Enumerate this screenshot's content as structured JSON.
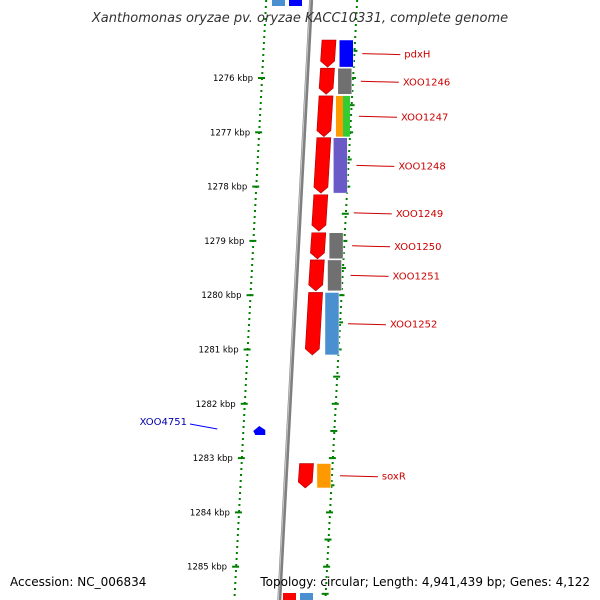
{
  "title": "Xanthomonas oryzae pv. oryzae KACC10331, complete genome",
  "footer": {
    "accession": "Accession: NC_006834",
    "summary": "Topology: circular; Length: 4,941,439 bp; Genes: 4,122"
  },
  "axis": {
    "unit": "kbp",
    "ticks": [
      "1276 kbp",
      "1277 kbp",
      "1278 kbp",
      "1279 kbp",
      "1280 kbp",
      "1281 kbp",
      "1282 kbp",
      "1283 kbp",
      "1284 kbp",
      "1285 kbp"
    ]
  },
  "genes": [
    {
      "label": "pdxH",
      "strand": "forward",
      "start_kbp": 1275.3,
      "end_kbp": 1275.8,
      "cog_color": "#0000ff"
    },
    {
      "label": "XOO1246",
      "strand": "forward",
      "start_kbp": 1275.82,
      "end_kbp": 1276.3,
      "cog_color": "#707070"
    },
    {
      "label": "XOO1247",
      "strand": "forward",
      "start_kbp": 1276.33,
      "end_kbp": 1277.08,
      "cog_color": [
        "#ff9900",
        "#33cc33"
      ]
    },
    {
      "label": "XOO1248",
      "strand": "forward",
      "start_kbp": 1277.1,
      "end_kbp": 1278.12,
      "cog_color": "#6a5ac8"
    },
    {
      "label": "XOO1249",
      "strand": "forward",
      "start_kbp": 1278.15,
      "end_kbp": 1278.82,
      "cog_color": null
    },
    {
      "label": "XOO1250",
      "strand": "forward",
      "start_kbp": 1278.85,
      "end_kbp": 1279.33,
      "cog_color": "#707070"
    },
    {
      "label": "XOO1251",
      "strand": "forward",
      "start_kbp": 1279.35,
      "end_kbp": 1279.92,
      "cog_color": "#707070"
    },
    {
      "label": "XOO1252",
      "strand": "forward",
      "start_kbp": 1279.95,
      "end_kbp": 1281.1,
      "cog_color": "#4a90d0"
    },
    {
      "label": "XOO4751",
      "strand": "reverse",
      "start_kbp": 1282.45,
      "end_kbp": 1282.55,
      "cog_color": null
    },
    {
      "label": "soxR",
      "strand": "forward",
      "start_kbp": 1283.1,
      "end_kbp": 1283.55,
      "cog_color": "#ff9900"
    }
  ],
  "edge_features": {
    "top": [
      "#4a90d0",
      "#0000ff"
    ],
    "bottom": [
      "#ff0000",
      "#4a90d0"
    ]
  },
  "colors": {
    "forward_gene": "#ff0000",
    "reverse_gene": "#0000ff",
    "forward_label": "#cc0000",
    "reverse_label": "#0000aa",
    "ticks": "#008000",
    "backbone": "#7f7f7f"
  }
}
